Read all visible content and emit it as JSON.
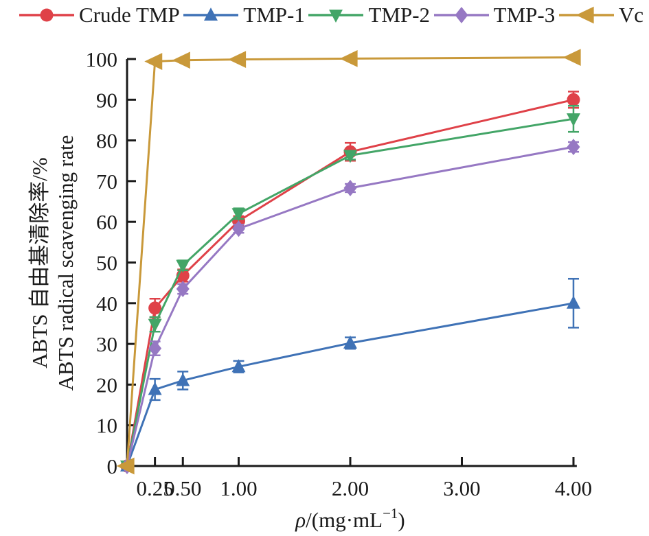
{
  "figure": {
    "background": "#ffffff",
    "text_color": "#1a1a1a",
    "axis_color": "#1a1a1a"
  },
  "chart_data": {
    "type": "line",
    "title": "",
    "x": [
      0,
      0.25,
      0.5,
      1.0,
      2.0,
      4.0
    ],
    "x_tick_values": [
      0.25,
      0.5,
      1.0,
      2.0,
      3.0,
      4.0
    ],
    "x_tick_labels": [
      "0.25",
      "0.50",
      "1.00",
      "2.00",
      "3.00",
      "4.00"
    ],
    "y_tick_values": [
      0,
      10,
      20,
      30,
      40,
      50,
      60,
      70,
      80,
      90,
      100
    ],
    "xlim": [
      0,
      4.03
    ],
    "ylim": [
      0,
      100
    ],
    "grid": false,
    "legend_position": "top",
    "xlabel": "ρ/(mg·mL⁻¹)",
    "xlabel_parts": {
      "rho": "ρ",
      "mid": "/(mg·mL",
      "sup": "−1",
      "close": ")"
    },
    "ylabel_line1": "ABTS 自由基清除率/%",
    "ylabel_line2": "ABTS radical scavenging rate",
    "series": [
      {
        "name": "Crude TMP",
        "color": "#df4148",
        "marker": "circle",
        "values": [
          0,
          38.8,
          46.8,
          60.2,
          77.2,
          90.0
        ],
        "errors": [
          0,
          2.3,
          1.5,
          1.2,
          2.2,
          2.0
        ]
      },
      {
        "name": "TMP-1",
        "color": "#3f72b6",
        "marker": "triangle-up",
        "values": [
          0,
          18.8,
          21.0,
          24.4,
          30.2,
          40.0
        ],
        "errors": [
          0,
          2.6,
          2.2,
          1.4,
          1.4,
          6.0
        ]
      },
      {
        "name": "TMP-2",
        "color": "#43a567",
        "marker": "triangle-down",
        "values": [
          0,
          34.8,
          49.3,
          62.0,
          76.3,
          85.3
        ],
        "errors": [
          0,
          1.8,
          1.2,
          1.3,
          1.0,
          3.2
        ]
      },
      {
        "name": "TMP-3",
        "color": "#9678c3",
        "marker": "diamond",
        "values": [
          0,
          28.9,
          43.5,
          58.3,
          68.3,
          78.4
        ],
        "errors": [
          0,
          1.7,
          1.2,
          1.0,
          1.0,
          1.2
        ]
      },
      {
        "name": "Vc",
        "color": "#c9993a",
        "marker": "triangle-left",
        "values": [
          0,
          99.4,
          99.7,
          99.9,
          100.1,
          100.4
        ],
        "errors": [
          0,
          0.4,
          0.3,
          0.3,
          0.3,
          0.4
        ]
      }
    ]
  }
}
